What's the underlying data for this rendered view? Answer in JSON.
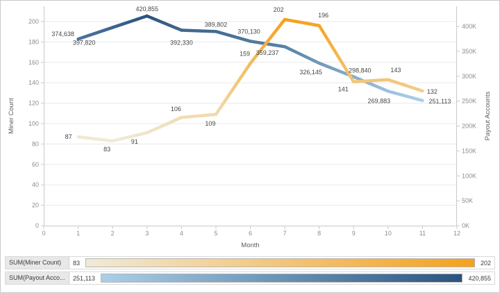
{
  "chart_data": {
    "type": "line",
    "title": "",
    "xlabel": "Month",
    "x_ticks": [
      0,
      1,
      2,
      3,
      4,
      5,
      6,
      7,
      8,
      9,
      10,
      11,
      12
    ],
    "x_range": [
      0,
      12
    ],
    "grid": "horizontal",
    "legend_position": "bottom",
    "left_axis": {
      "label": "Miner Count",
      "ticks": [
        0,
        20,
        40,
        60,
        80,
        100,
        120,
        140,
        160,
        180,
        200
      ],
      "range": [
        0,
        200
      ]
    },
    "right_axis": {
      "label": "Payout Accounts",
      "tick_values": [
        0,
        50000,
        100000,
        150000,
        200000,
        250000,
        300000,
        350000,
        400000
      ],
      "tick_labels": [
        "0K",
        "50K",
        "100K",
        "150K",
        "200K",
        "250K",
        "300K",
        "350K",
        "400K"
      ],
      "range": [
        0,
        400000
      ]
    },
    "x": [
      1,
      2,
      3,
      4,
      5,
      6,
      7,
      8,
      9,
      10,
      11
    ],
    "series": [
      {
        "name": "SUM(Payout Accounts)",
        "axis": "right",
        "values": [
          374638,
          397820,
          420855,
          392330,
          389802,
          370130,
          359237,
          326145,
          298840,
          269883,
          251113
        ],
        "point_labels": [
          "374,638",
          "397,820",
          "420,855",
          "392,330",
          "389,802",
          "370,130",
          "359,237",
          "326,145",
          "298,840",
          "269,883",
          "251,113"
        ],
        "color_low": "#aacfe8",
        "color_high": "#2a5480",
        "color_domain": [
          251113,
          420855
        ],
        "stroke_width": 4.5,
        "label_offsets": [
          [
            -22,
            -7
          ],
          [
            -41,
            22
          ],
          [
            0,
            -10
          ],
          [
            0,
            18
          ],
          [
            0,
            -10
          ],
          [
            -2,
            -14
          ],
          [
            -25,
            9
          ],
          [
            -12,
            13
          ],
          [
            9,
            -9
          ],
          [
            -13,
            14
          ],
          [
            25,
            1
          ]
        ]
      },
      {
        "name": "SUM(Miner Count)",
        "axis": "left",
        "values": [
          87,
          83,
          91,
          106,
          109,
          159,
          202,
          196,
          141,
          143,
          132
        ],
        "point_labels": [
          "87",
          "83",
          "91",
          "106",
          "109",
          "159",
          "202",
          "196",
          "141",
          "143",
          "132"
        ],
        "color_low": "#f0ead6",
        "color_high": "#f5a11c",
        "color_domain": [
          83,
          202
        ],
        "stroke_width": 4.5,
        "label_offsets": [
          [
            -14,
            0
          ],
          [
            -8,
            12
          ],
          [
            -18,
            13
          ],
          [
            -8,
            -12
          ],
          [
            -8,
            13
          ],
          [
            -8,
            -14
          ],
          [
            -9,
            -14
          ],
          [
            6,
            -15
          ],
          [
            -15,
            11
          ],
          [
            11,
            -14
          ],
          [
            14,
            1
          ]
        ]
      }
    ]
  },
  "legend": {
    "rows": [
      {
        "label": "SUM(Miner Count)",
        "min": "83",
        "max": "202",
        "low": "#f0ead6",
        "high": "#f5a11c"
      },
      {
        "label": "SUM(Payout Acco...",
        "min": "251,113",
        "max": "420,855",
        "low": "#aacfe8",
        "high": "#2a5480"
      }
    ]
  }
}
